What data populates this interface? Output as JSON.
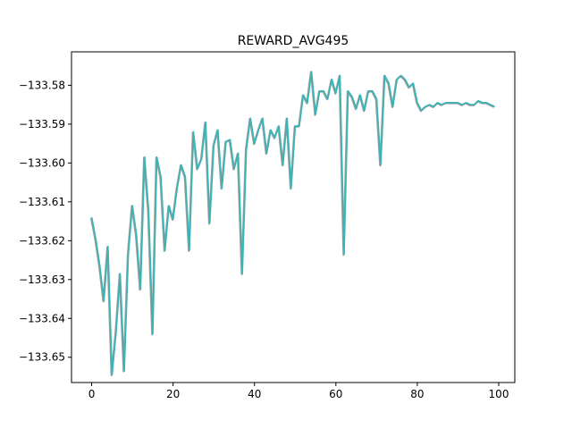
{
  "chart_data": {
    "type": "line",
    "title": "REWARD_AVG495",
    "xlabel": "",
    "ylabel": "",
    "xlim": [
      -4.95,
      103.95
    ],
    "ylim": [
      -133.6565,
      -133.5714
    ],
    "xticks": [
      0,
      20,
      40,
      60,
      80,
      100
    ],
    "xtick_labels": [
      "0",
      "20",
      "40",
      "60",
      "80",
      "100"
    ],
    "yticks": [
      -133.65,
      -133.64,
      -133.63,
      -133.62,
      -133.61,
      -133.6,
      -133.59,
      -133.58
    ],
    "ytick_labels": [
      "−133.65",
      "−133.64",
      "−133.63",
      "−133.62",
      "−133.61",
      "−133.60",
      "−133.59",
      "−133.58"
    ],
    "grid": false,
    "colors": {
      "series": "#3db3b3",
      "series_shadow": "#a0a0a0"
    },
    "series": [
      {
        "x": [
          0,
          1,
          2,
          3,
          4,
          5,
          6,
          7,
          8,
          9,
          10,
          11,
          12,
          13,
          14,
          15,
          16,
          17,
          18,
          19,
          20,
          21,
          22,
          23,
          24,
          25,
          26,
          27,
          28,
          29,
          30,
          31,
          32,
          33,
          34,
          35,
          36,
          37,
          38,
          39,
          40,
          41,
          42,
          43,
          44,
          45,
          46,
          47,
          48,
          49,
          50,
          51,
          52,
          53,
          54,
          55,
          56,
          57,
          58,
          59,
          60,
          61,
          62,
          63,
          64,
          65,
          66,
          67,
          68,
          69,
          70,
          71,
          72,
          73,
          74,
          75,
          76,
          77,
          78,
          79,
          80,
          81,
          82,
          83,
          84,
          85,
          86,
          87,
          88,
          89,
          90,
          91,
          92,
          93,
          94,
          95,
          96,
          97,
          98,
          99
        ],
        "values": [
          -133.614,
          -133.6195,
          -133.6265,
          -133.6355,
          -133.6215,
          -133.6545,
          -133.6435,
          -133.6285,
          -133.6535,
          -133.6235,
          -133.611,
          -133.6185,
          -133.6325,
          -133.5985,
          -133.6125,
          -133.644,
          -133.5985,
          -133.6035,
          -133.6225,
          -133.611,
          -133.6145,
          -133.6065,
          -133.6005,
          -133.6035,
          -133.6225,
          -133.592,
          -133.6015,
          -133.599,
          -133.5895,
          -133.6155,
          -133.5955,
          -133.5915,
          -133.6065,
          -133.5945,
          -133.594,
          -133.6015,
          -133.5975,
          -133.6285,
          -133.5965,
          -133.5885,
          -133.595,
          -133.5915,
          -133.5885,
          -133.5975,
          -133.5915,
          -133.5935,
          -133.5905,
          -133.6005,
          -133.5885,
          -133.6065,
          -133.5905,
          -133.5905,
          -133.5825,
          -133.5845,
          -133.5765,
          -133.5875,
          -133.5815,
          -133.5815,
          -133.5835,
          -133.5785,
          -133.582,
          -133.5775,
          -133.6235,
          -133.5815,
          -133.583,
          -133.586,
          -133.5825,
          -133.5865,
          -133.5815,
          -133.5815,
          -133.5835,
          -133.6005,
          -133.5775,
          -133.5795,
          -133.5855,
          -133.5785,
          -133.5775,
          -133.5785,
          -133.5805,
          -133.5795,
          -133.5845,
          -133.5865,
          -133.5855,
          -133.585,
          -133.5855,
          -133.5845,
          -133.585,
          -133.5845,
          -133.5845,
          -133.5845,
          -133.5845,
          -133.585,
          -133.5845,
          -133.585,
          -133.585,
          -133.584,
          -133.5845,
          -133.5845,
          -133.585,
          -133.5855
        ]
      }
    ]
  }
}
